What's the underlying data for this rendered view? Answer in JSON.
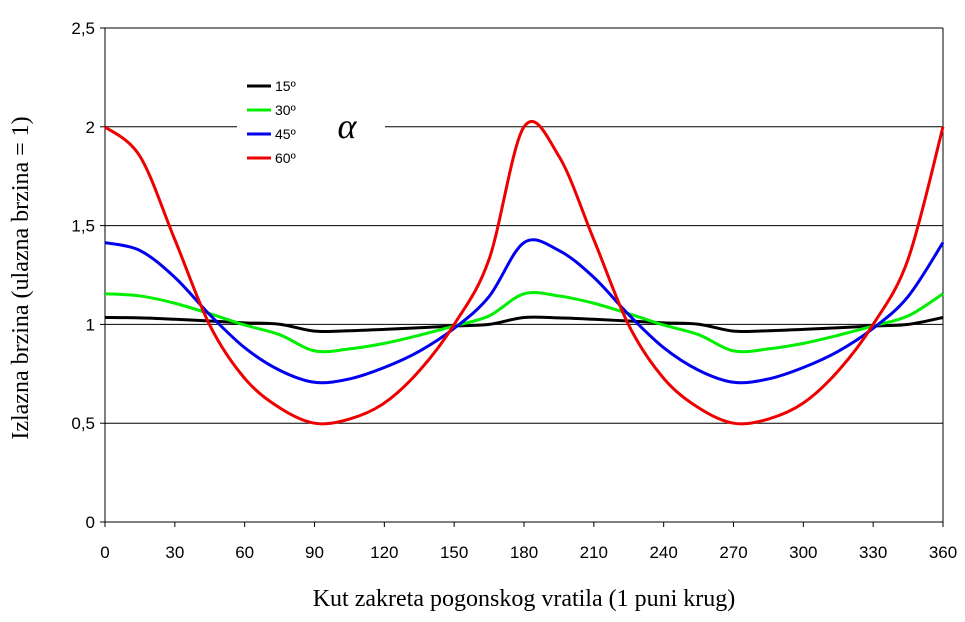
{
  "chart_data": {
    "type": "line",
    "title": "",
    "xlabel": "Kut zakreta pogonskog vratila (1 puni krug)",
    "ylabel": "Izlazna brzina (ulazna brzina = 1)",
    "xlim": [
      0,
      360
    ],
    "ylim": [
      0,
      2.5
    ],
    "x_ticks": [
      0,
      30,
      60,
      90,
      120,
      150,
      180,
      210,
      240,
      270,
      300,
      330,
      360
    ],
    "x_tick_labels": [
      "0",
      "30",
      "60",
      "90",
      "120",
      "150",
      "180",
      "210",
      "240",
      "270",
      "300",
      "330",
      "360"
    ],
    "y_ticks": [
      0,
      0.5,
      1,
      1.5,
      2,
      2.5
    ],
    "y_tick_labels": [
      "0",
      "0,5",
      "1",
      "1,5",
      "2",
      "2,5"
    ],
    "grid": "horizontal",
    "legend_position": "top-left",
    "legend_symbol": "α",
    "x": [
      0,
      15,
      30,
      45,
      60,
      75,
      90,
      105,
      120,
      135,
      150,
      165,
      180,
      195,
      210,
      225,
      240,
      255,
      270,
      285,
      300,
      315,
      330,
      345,
      360
    ],
    "series": [
      {
        "name": "15º",
        "color": "#000000",
        "values": [
          1.035,
          1.033,
          1.026,
          1.017,
          1.008,
          1.001,
          0.966,
          0.968,
          0.975,
          0.983,
          0.992,
          1.0,
          1.035,
          1.033,
          1.026,
          1.017,
          1.008,
          1.001,
          0.966,
          0.968,
          0.975,
          0.983,
          0.992,
          1.0,
          1.035
        ]
      },
      {
        "name": "30º",
        "color": "#00ee00",
        "values": [
          1.155,
          1.144,
          1.107,
          1.054,
          0.997,
          0.948,
          0.866,
          0.876,
          0.904,
          0.945,
          0.992,
          1.043,
          1.155,
          1.144,
          1.107,
          1.054,
          0.997,
          0.948,
          0.866,
          0.876,
          0.904,
          0.945,
          0.992,
          1.043,
          1.155
        ]
      },
      {
        "name": "45º",
        "color": "#0000ee",
        "values": [
          1.414,
          1.374,
          1.238,
          1.049,
          0.882,
          0.768,
          0.707,
          0.724,
          0.782,
          0.864,
          0.98,
          1.141,
          1.414,
          1.374,
          1.238,
          1.049,
          0.882,
          0.768,
          0.707,
          0.724,
          0.782,
          0.864,
          0.98,
          1.141,
          1.414
        ]
      },
      {
        "name": "60º",
        "color": "#ee0000",
        "values": [
          2.0,
          1.851,
          1.429,
          0.996,
          0.727,
          0.578,
          0.5,
          0.521,
          0.602,
          0.765,
          1.0,
          1.33,
          2.0,
          1.851,
          1.429,
          0.996,
          0.727,
          0.578,
          0.5,
          0.521,
          0.602,
          0.765,
          1.0,
          1.33,
          2.0
        ]
      }
    ]
  }
}
